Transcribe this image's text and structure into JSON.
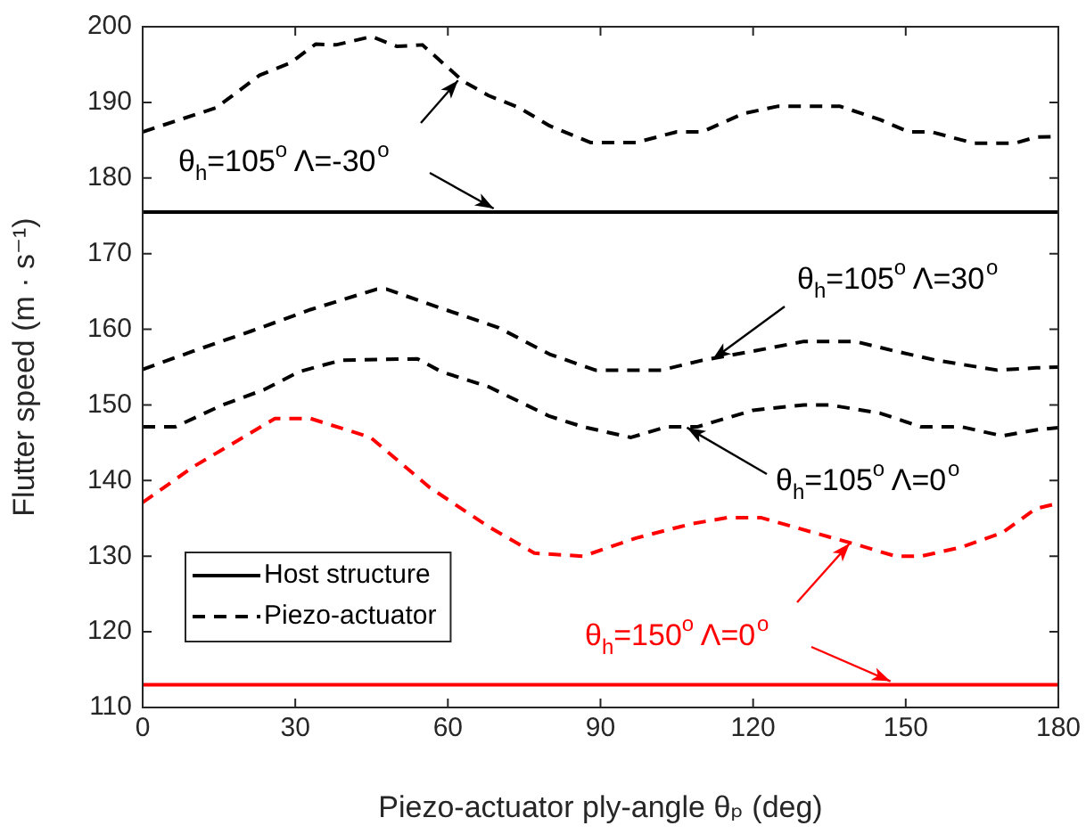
{
  "chart_data": {
    "type": "line",
    "xlabel": "Piezo-actuator ply-angle θₚ (deg)",
    "ylabel": "Flutter speed (m · s⁻¹)",
    "xlim": [
      0,
      180
    ],
    "xticks": [
      0,
      30,
      60,
      90,
      120,
      150,
      180
    ],
    "ylim": [
      110,
      200
    ],
    "yticks": [
      110,
      120,
      130,
      140,
      150,
      160,
      170,
      180,
      190,
      200
    ],
    "grid": false,
    "legend": "bottom left",
    "marker": "none",
    "series": [
      {
        "name": "Host structure",
        "color": "#000000",
        "line_style": "solid",
        "x": [
          0,
          180
        ],
        "values": [
          175.5,
          175.5
        ]
      },
      {
        "name": "Piezo-actuator",
        "color": "#000000",
        "line_style": "dashed",
        "x": [
          0,
          14.5,
          23,
          29,
          34,
          38,
          45,
          50,
          55,
          63,
          68,
          74,
          80,
          88,
          97,
          105,
          110,
          118,
          125,
          137,
          145,
          150.6,
          155,
          163.4,
          171.5,
          175.6,
          180
        ],
        "values": [
          186.1,
          189.3,
          193.6,
          195.2,
          197.7,
          197.6,
          198.7,
          197.4,
          197.6,
          192.8,
          190.9,
          189.3,
          186.9,
          184.7,
          184.7,
          186.1,
          186.1,
          188.5,
          189.5,
          189.5,
          187.7,
          186.1,
          186.1,
          184.6,
          184.6,
          185.4,
          185.5
        ]
      },
      {
        "color": "#000000",
        "line_style": "dashed",
        "x": [
          0,
          9.9,
          21.5,
          33,
          46,
          48,
          56,
          70,
          80,
          89,
          102,
          110,
          120,
          130,
          140,
          148,
          156,
          168,
          175.6,
          180
        ],
        "values": [
          154.7,
          157.1,
          159.8,
          162.6,
          165.3,
          165.3,
          163.4,
          160.2,
          156.7,
          154.6,
          154.6,
          155.9,
          157.1,
          158.4,
          158.4,
          157.1,
          155.9,
          154.6,
          154.9,
          155
        ]
      },
      {
        "color": "#000000",
        "line_style": "dashed",
        "x": [
          0,
          6.4,
          15.7,
          23.8,
          30.8,
          39,
          54,
          58.7,
          68,
          80,
          86.6,
          96,
          103,
          109,
          120,
          130,
          135,
          145,
          153,
          161,
          169,
          175.6,
          180
        ],
        "values": [
          147.1,
          147.1,
          150,
          152,
          154.4,
          155.9,
          156.1,
          154.4,
          152.4,
          148.5,
          147.1,
          145.7,
          147.1,
          147.1,
          149.3,
          150,
          150,
          148.9,
          147.1,
          147.1,
          145.9,
          146.7,
          147
        ]
      },
      {
        "color": "#ff0000",
        "line_style": "dashed",
        "x": [
          0,
          9.9,
          26,
          33,
          44.8,
          56.4,
          68,
          77,
          86.6,
          97,
          108,
          115,
          121.5,
          132,
          140,
          148,
          153,
          161,
          169,
          175.6,
          180
        ],
        "values": [
          137.1,
          141.8,
          148.2,
          148.2,
          145.7,
          139.1,
          133.9,
          130.4,
          130,
          132.4,
          134.3,
          135.1,
          135.1,
          133.1,
          131.6,
          130,
          130,
          131.2,
          133.1,
          136.3,
          137
        ]
      },
      {
        "color": "#ff0000",
        "line_style": "solid",
        "x": [
          0,
          180
        ],
        "values": [
          113,
          113
        ]
      }
    ],
    "annotations": [
      {
        "text": "θ$_{h}$=105$^{o}$ Λ=-30$^{o}$",
        "x": 62,
        "y": 192.9
      },
      {
        "text": "θ$_{h}$=105$^{o}$ Λ=30$^{o}$",
        "x": 112,
        "y": 156
      },
      {
        "text": "θ$_{h}$=105$^{o}$ Λ=0$^{o}$",
        "x": 107,
        "y": 147
      },
      {
        "text": "θ$_{h}$=150$^{o}$ Λ=0$^{o}$",
        "x": 139,
        "y": 131.7
      }
    ]
  }
}
